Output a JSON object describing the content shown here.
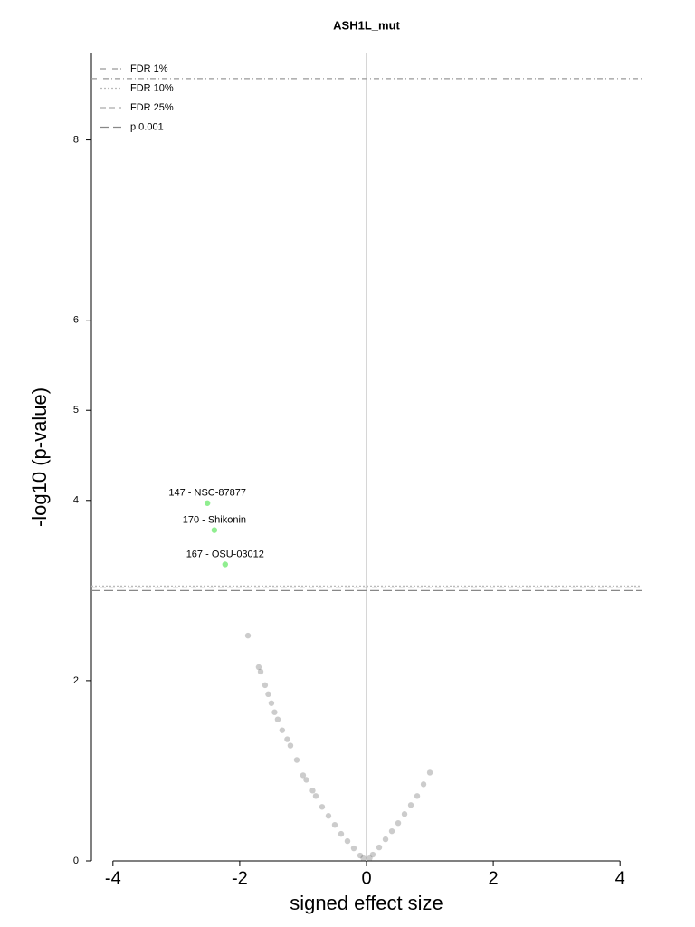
{
  "chart_data": {
    "type": "scatter",
    "title": "ASH1L_mut",
    "x_label": "signed effect size",
    "y_label": "-log10 (p-value)",
    "xlim": [
      -4.34,
      4.34
    ],
    "ylim": [
      0,
      8.97
    ],
    "xticks": [
      -4,
      -2,
      0,
      2,
      4
    ],
    "yticks": [
      0,
      2,
      4,
      5,
      6,
      8
    ],
    "thresholds": [
      {
        "name": "FDR 1%",
        "value": 8.68,
        "style": "dashdot",
        "color": "#999999"
      },
      {
        "name": "FDR 10%",
        "value": 3.05,
        "style": "dotted",
        "color": "#bbbbbb"
      },
      {
        "name": "FDR 25%",
        "value": 3.03,
        "style": "dashed",
        "color": "#aaaaaa"
      },
      {
        "name": "p 0.001",
        "value": 3.0,
        "style": "longdash",
        "color": "#888888"
      }
    ],
    "points": {
      "color": "#555555",
      "x": [
        -1.87,
        -1.7,
        -1.67,
        -1.6,
        -1.55,
        -1.5,
        -1.45,
        -1.4,
        -1.33,
        -1.25,
        -1.2,
        -1.1,
        -1.0,
        -0.95,
        -0.85,
        -0.8,
        -0.7,
        -0.6,
        -0.5,
        -0.4,
        -0.3,
        -0.2,
        -0.1,
        -0.05,
        0.05,
        0.1,
        0.2,
        0.3,
        0.4,
        0.5,
        0.6,
        0.7,
        0.8,
        0.9,
        1.0
      ],
      "y": [
        2.5,
        2.15,
        2.1,
        1.95,
        1.85,
        1.75,
        1.65,
        1.57,
        1.45,
        1.35,
        1.28,
        1.12,
        0.95,
        0.9,
        0.78,
        0.72,
        0.6,
        0.5,
        0.4,
        0.3,
        0.22,
        0.14,
        0.06,
        0.03,
        0.03,
        0.07,
        0.15,
        0.24,
        0.33,
        0.42,
        0.52,
        0.62,
        0.72,
        0.85,
        0.98
      ]
    },
    "highlighted": {
      "color": "#90ee90",
      "labels": [
        "147 - NSC-87877",
        "170 - Shikonin",
        "167 - OSU-03012"
      ],
      "x": [
        -2.51,
        -2.4,
        -2.23
      ],
      "y": [
        3.97,
        3.67,
        3.29
      ]
    }
  }
}
